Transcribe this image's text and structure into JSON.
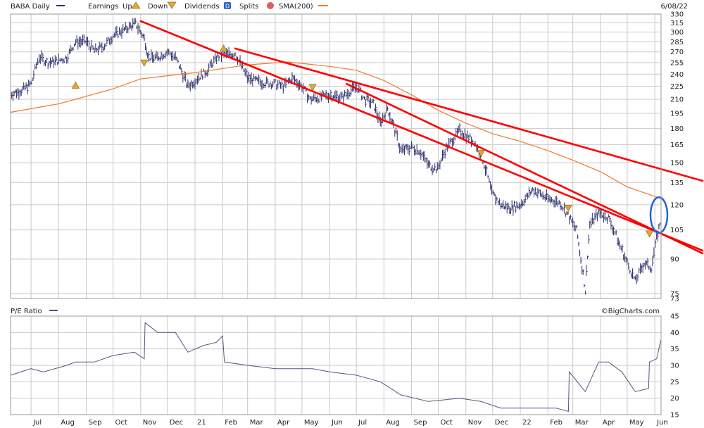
{
  "header": {
    "symbol_label": "BABA Daily",
    "earnings_label": "Earnings",
    "up_label": "Up",
    "down_label": "Down",
    "dividends_label": "Dividends",
    "splits_label": "Splits",
    "sma_label": "SMA(200)",
    "date_label": "6/08/22"
  },
  "lower": {
    "title": "P/E Ratio"
  },
  "credit": "©BigCharts.com",
  "colors": {
    "price": "#2b2f6b",
    "sma": "#f07a2a",
    "trendline": "#ff0000",
    "highlight": "#1f66d6",
    "earnings_marker": "#e0a73c",
    "pe_line": "#55557e",
    "grid": "#c9c9c9"
  },
  "chart_data": [
    {
      "type": "line",
      "title": "BABA Daily",
      "y_scale": "log",
      "ylim": [
        73,
        330
      ],
      "xlim": [
        "2020-06-08",
        "2022-06-08"
      ],
      "y_ticks": [
        330,
        315,
        300,
        285,
        270,
        255,
        240,
        225,
        210,
        195,
        180,
        165,
        150,
        135,
        120,
        105,
        90,
        75,
        73
      ],
      "x_tick_labels": [
        {
          "label": "Jul",
          "date": "2020-07-01"
        },
        {
          "label": "Aug",
          "date": "2020-08-01"
        },
        {
          "label": "Sep",
          "date": "2020-09-01"
        },
        {
          "label": "Oct",
          "date": "2020-10-01"
        },
        {
          "label": "Nov",
          "date": "2020-11-01"
        },
        {
          "label": "Dec",
          "date": "2020-12-01"
        },
        {
          "label": "21",
          "date": "2021-01-01"
        },
        {
          "label": "Feb",
          "date": "2021-02-01"
        },
        {
          "label": "Mar",
          "date": "2021-03-01"
        },
        {
          "label": "Apr",
          "date": "2021-04-01"
        },
        {
          "label": "May",
          "date": "2021-05-01"
        },
        {
          "label": "Jun",
          "date": "2021-06-01"
        },
        {
          "label": "Jul",
          "date": "2021-07-01"
        },
        {
          "label": "Aug",
          "date": "2021-08-01"
        },
        {
          "label": "Sep",
          "date": "2021-09-01"
        },
        {
          "label": "Oct",
          "date": "2021-10-01"
        },
        {
          "label": "Nov",
          "date": "2021-11-01"
        },
        {
          "label": "Dec",
          "date": "2021-12-01"
        },
        {
          "label": "22",
          "date": "2022-01-01"
        },
        {
          "label": "Feb",
          "date": "2022-02-01"
        },
        {
          "label": "Mar",
          "date": "2022-03-01"
        },
        {
          "label": "Apr",
          "date": "2022-04-01"
        },
        {
          "label": "May",
          "date": "2022-05-01"
        },
        {
          "label": "Jun",
          "date": "2022-06-01"
        }
      ],
      "grid": true,
      "series": [
        {
          "name": "BABA Daily",
          "style": "ohlc-bars",
          "points": [
            [
              "2020-06-08",
              216
            ],
            [
              "2020-06-20",
              220
            ],
            [
              "2020-07-01",
              228
            ],
            [
              "2020-07-10",
              263
            ],
            [
              "2020-07-20",
              255
            ],
            [
              "2020-08-01",
              258
            ],
            [
              "2020-08-10",
              262
            ],
            [
              "2020-08-20",
              285
            ],
            [
              "2020-09-01",
              285
            ],
            [
              "2020-09-10",
              272
            ],
            [
              "2020-09-20",
              278
            ],
            [
              "2020-10-01",
              294
            ],
            [
              "2020-10-15",
              305
            ],
            [
              "2020-10-26",
              314
            ],
            [
              "2020-11-01",
              300
            ],
            [
              "2020-11-05",
              290
            ],
            [
              "2020-11-10",
              262
            ],
            [
              "2020-11-20",
              262
            ],
            [
              "2020-12-01",
              270
            ],
            [
              "2020-12-10",
              262
            ],
            [
              "2020-12-24",
              225
            ],
            [
              "2021-01-01",
              232
            ],
            [
              "2021-01-15",
              245
            ],
            [
              "2021-01-25",
              262
            ],
            [
              "2021-02-01",
              265
            ],
            [
              "2021-02-15",
              268
            ],
            [
              "2021-03-01",
              235
            ],
            [
              "2021-03-15",
              230
            ],
            [
              "2021-04-01",
              228
            ],
            [
              "2021-04-10",
              225
            ],
            [
              "2021-04-20",
              235
            ],
            [
              "2021-05-01",
              225
            ],
            [
              "2021-05-10",
              210
            ],
            [
              "2021-05-20",
              212
            ],
            [
              "2021-06-01",
              215
            ],
            [
              "2021-06-15",
              212
            ],
            [
              "2021-07-01",
              225
            ],
            [
              "2021-07-10",
              210
            ],
            [
              "2021-07-20",
              205
            ],
            [
              "2021-07-28",
              185
            ],
            [
              "2021-08-05",
              200
            ],
            [
              "2021-08-20",
              160
            ],
            [
              "2021-09-01",
              163
            ],
            [
              "2021-09-10",
              160
            ],
            [
              "2021-09-20",
              148
            ],
            [
              "2021-09-30",
              145
            ],
            [
              "2021-10-10",
              162
            ],
            [
              "2021-10-25",
              178
            ],
            [
              "2021-11-10",
              168
            ],
            [
              "2021-11-20",
              152
            ],
            [
              "2021-11-30",
              128
            ],
            [
              "2021-12-10",
              120
            ],
            [
              "2021-12-20",
              118
            ],
            [
              "2022-01-01",
              120
            ],
            [
              "2022-01-15",
              130
            ],
            [
              "2022-02-01",
              124
            ],
            [
              "2022-02-15",
              121
            ],
            [
              "2022-02-25",
              112
            ],
            [
              "2022-03-05",
              105
            ],
            [
              "2022-03-10",
              90
            ],
            [
              "2022-03-15",
              76
            ],
            [
              "2022-03-20",
              108
            ],
            [
              "2022-03-30",
              115
            ],
            [
              "2022-04-10",
              112
            ],
            [
              "2022-04-20",
              100
            ],
            [
              "2022-05-01",
              88
            ],
            [
              "2022-05-10",
              80
            ],
            [
              "2022-05-20",
              88
            ],
            [
              "2022-05-28",
              86
            ],
            [
              "2022-06-03",
              100
            ],
            [
              "2022-06-08",
              112
            ]
          ]
        },
        {
          "name": "SMA(200)",
          "style": "line",
          "points": [
            [
              "2020-06-08",
              196
            ],
            [
              "2020-08-01",
              205
            ],
            [
              "2020-10-01",
              222
            ],
            [
              "2020-11-01",
              234
            ],
            [
              "2021-01-01",
              242
            ],
            [
              "2021-03-01",
              252
            ],
            [
              "2021-04-15",
              256
            ],
            [
              "2021-06-01",
              250
            ],
            [
              "2021-07-01",
              245
            ],
            [
              "2021-08-01",
              232
            ],
            [
              "2021-09-01",
              215
            ],
            [
              "2021-10-01",
              198
            ],
            [
              "2021-11-01",
              185
            ],
            [
              "2021-12-01",
              175
            ],
            [
              "2022-01-01",
              168
            ],
            [
              "2022-02-01",
              160
            ],
            [
              "2022-03-01",
              152
            ],
            [
              "2022-04-01",
              143
            ],
            [
              "2022-05-01",
              132
            ],
            [
              "2022-06-08",
              124
            ]
          ]
        }
      ],
      "trendlines": [
        {
          "from": [
            "2020-11-01",
            318
          ],
          "to": [
            "2022-06-08",
            103
          ]
        },
        {
          "from": [
            "2021-02-15",
            275
          ],
          "to": [
            "2022-06-08",
            145
          ]
        },
        {
          "from": [
            "2021-06-20",
            228
          ],
          "to": [
            "2022-06-08",
            103
          ]
        }
      ],
      "earnings": [
        {
          "date": "2020-08-20",
          "value": 226,
          "kind": "up"
        },
        {
          "date": "2020-11-05",
          "value": 255,
          "kind": "down"
        },
        {
          "date": "2021-02-02",
          "value": 275,
          "kind": "up"
        },
        {
          "date": "2021-05-13",
          "value": 224,
          "kind": "down"
        },
        {
          "date": "2021-11-18",
          "value": 158,
          "kind": "down"
        },
        {
          "date": "2022-02-24",
          "value": 118,
          "kind": "down"
        },
        {
          "date": "2022-05-26",
          "value": 103,
          "kind": "down"
        }
      ],
      "highlight": {
        "date": "2022-06-08",
        "low": 105,
        "high": 123
      }
    },
    {
      "type": "line",
      "title": "P/E Ratio",
      "ylim": [
        15,
        45
      ],
      "xlim": [
        "2020-06-08",
        "2022-06-08"
      ],
      "y_ticks": [
        45,
        40,
        35,
        30,
        25,
        20,
        15
      ],
      "grid": true,
      "series": [
        {
          "name": "P/E Ratio",
          "points": [
            [
              "2020-06-08",
              27
            ],
            [
              "2020-07-01",
              29
            ],
            [
              "2020-07-15",
              28
            ],
            [
              "2020-08-10",
              30
            ],
            [
              "2020-08-20",
              31
            ],
            [
              "2020-09-10",
              31
            ],
            [
              "2020-10-01",
              33
            ],
            [
              "2020-10-25",
              34
            ],
            [
              "2020-11-05",
              32
            ],
            [
              "2020-11-06",
              43
            ],
            [
              "2020-11-20",
              40
            ],
            [
              "2020-12-10",
              40
            ],
            [
              "2020-12-24",
              34
            ],
            [
              "2021-01-10",
              36
            ],
            [
              "2021-01-25",
              37
            ],
            [
              "2021-02-01",
              39
            ],
            [
              "2021-02-03",
              31
            ],
            [
              "2021-03-01",
              30
            ],
            [
              "2021-04-01",
              29
            ],
            [
              "2021-05-13",
              29
            ],
            [
              "2021-06-01",
              28
            ],
            [
              "2021-07-01",
              27
            ],
            [
              "2021-07-28",
              25
            ],
            [
              "2021-08-20",
              21
            ],
            [
              "2021-09-20",
              19
            ],
            [
              "2021-10-25",
              20
            ],
            [
              "2021-11-18",
              19
            ],
            [
              "2021-12-10",
              17
            ],
            [
              "2022-01-15",
              17
            ],
            [
              "2022-02-10",
              17
            ],
            [
              "2022-02-24",
              16
            ],
            [
              "2022-02-25",
              28
            ],
            [
              "2022-03-15",
              22
            ],
            [
              "2022-03-30",
              31
            ],
            [
              "2022-04-10",
              31
            ],
            [
              "2022-04-25",
              28
            ],
            [
              "2022-05-10",
              22
            ],
            [
              "2022-05-25",
              23
            ],
            [
              "2022-05-26",
              31
            ],
            [
              "2022-06-03",
              32
            ],
            [
              "2022-06-08",
              38
            ]
          ]
        }
      ]
    }
  ]
}
